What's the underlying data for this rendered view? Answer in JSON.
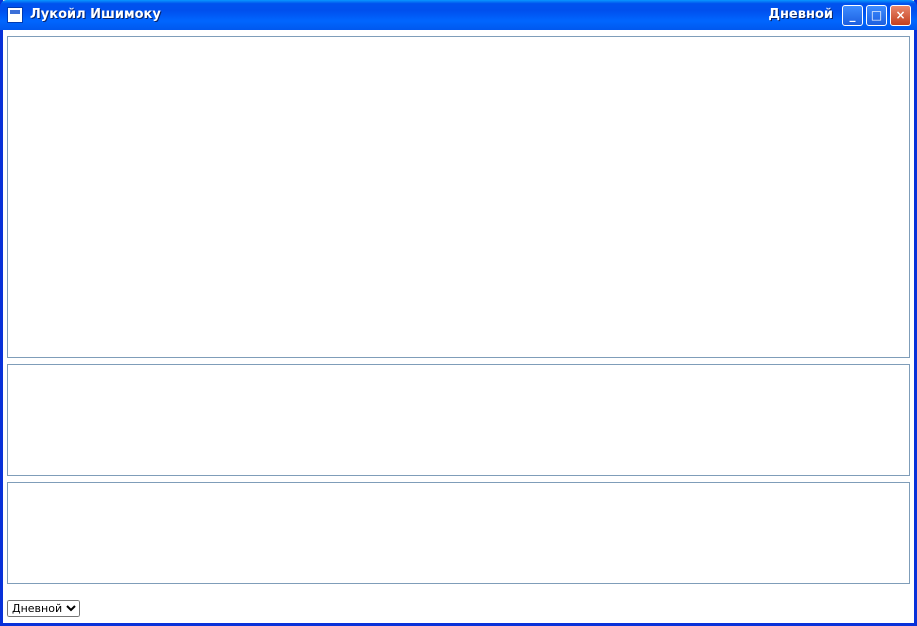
{
  "window": {
    "title": "Лукойл Ишимоку",
    "title_right": "Дневной",
    "controls": {
      "minimize": "_",
      "maximize": "□",
      "close": "×"
    }
  },
  "footer": {
    "select_options": [
      "Дневной"
    ]
  }
}
